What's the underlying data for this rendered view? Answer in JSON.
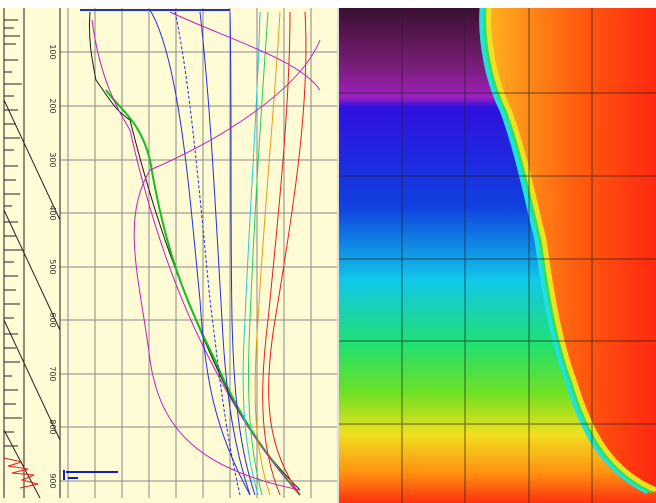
{
  "depth_labels": [
    "100",
    "200",
    "300",
    "400",
    "500",
    "600",
    "700",
    "800",
    "900"
  ]
}
